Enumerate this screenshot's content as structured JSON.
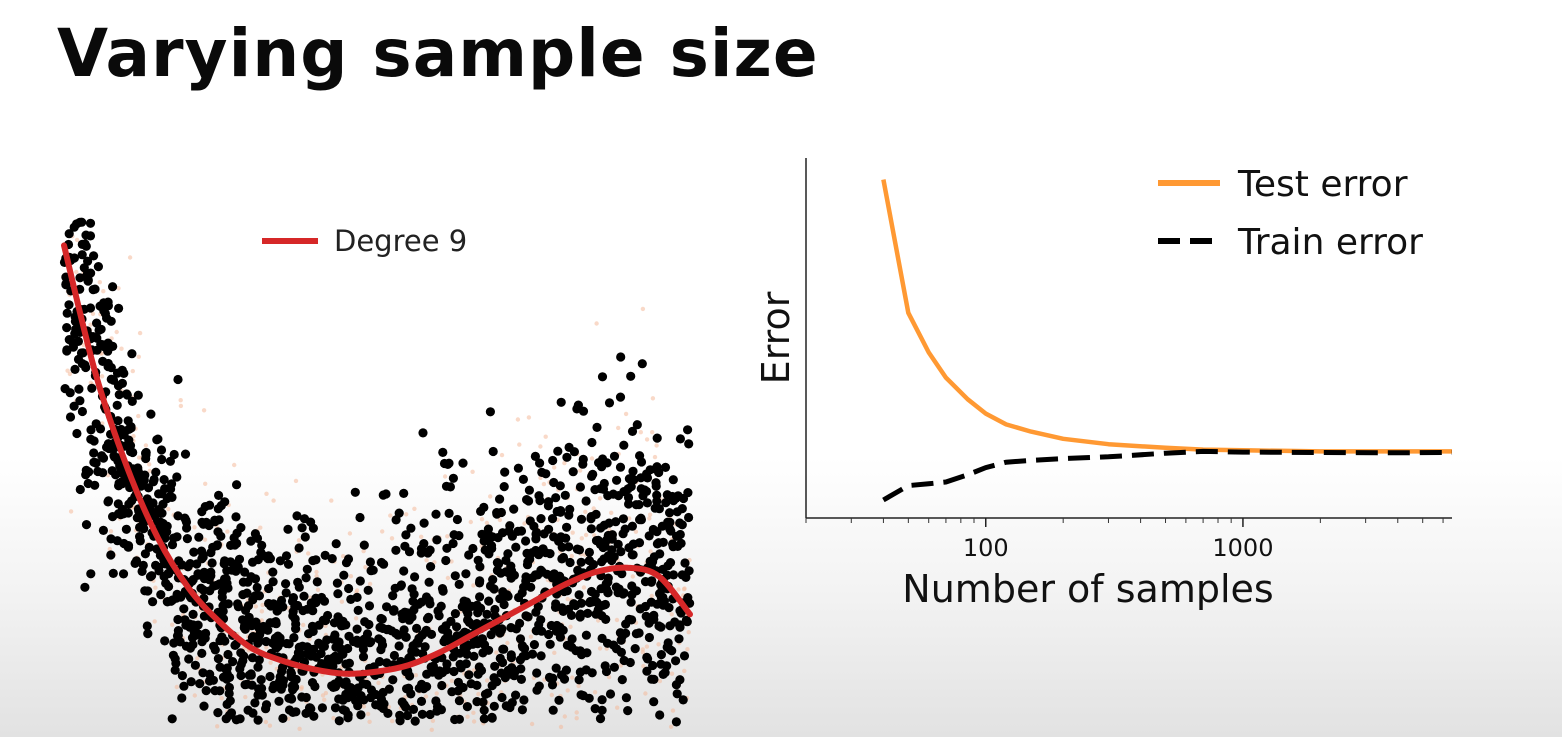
{
  "slide": {
    "title": "Varying sample size"
  },
  "chart_data": [
    {
      "type": "scatter",
      "title": "",
      "xlabel": "",
      "ylabel": "",
      "axes_visible": false,
      "legend": {
        "placement": "top-center",
        "entries": [
          {
            "name": "Degree 9",
            "color": "#d62728",
            "style": "solid"
          }
        ]
      },
      "colors": {
        "points": "#000000",
        "faint_points": "#f4b99a",
        "fit_line": "#d62728"
      },
      "xlim": [
        0,
        1
      ],
      "ylim": [
        0,
        1.25
      ],
      "point_count_approx": 1800,
      "fit_curve": {
        "name": "Degree 9",
        "x": [
          0.0,
          0.05,
          0.1,
          0.15,
          0.2,
          0.25,
          0.3,
          0.35,
          0.4,
          0.45,
          0.5,
          0.55,
          0.6,
          0.65,
          0.7,
          0.75,
          0.8,
          0.85,
          0.9,
          0.95,
          1.0
        ],
        "y": [
          1.19,
          0.89,
          0.67,
          0.5,
          0.38,
          0.3,
          0.24,
          0.21,
          0.19,
          0.18,
          0.185,
          0.2,
          0.23,
          0.27,
          0.31,
          0.35,
          0.39,
          0.42,
          0.43,
          0.41,
          0.32
        ]
      }
    },
    {
      "type": "line",
      "title": "",
      "xlabel": "Number of samples",
      "ylabel": "Error",
      "xscale": "log",
      "xlim": [
        20,
        6500
      ],
      "ylim": [
        0,
        1
      ],
      "x_ticks": [
        {
          "value": 100,
          "label": "100"
        },
        {
          "value": 1000,
          "label": "1000"
        }
      ],
      "y_ticks": [],
      "grid": false,
      "legend": {
        "placement": "top-right"
      },
      "series": [
        {
          "name": "Test error",
          "color": "#ff9933",
          "style": "solid",
          "x": [
            40,
            50,
            60,
            70,
            85,
            100,
            120,
            150,
            200,
            300,
            500,
            700,
            1000,
            2000,
            4000,
            6500
          ],
          "y": [
            0.94,
            0.57,
            0.46,
            0.39,
            0.33,
            0.29,
            0.26,
            0.24,
            0.22,
            0.205,
            0.195,
            0.19,
            0.188,
            0.185,
            0.185,
            0.185
          ]
        },
        {
          "name": "Train error",
          "color": "#000000",
          "style": "dashed",
          "x": [
            40,
            50,
            60,
            70,
            85,
            100,
            120,
            150,
            200,
            300,
            500,
            700,
            1000,
            2000,
            4000,
            6500
          ],
          "y": [
            0.05,
            0.09,
            0.095,
            0.1,
            0.12,
            0.14,
            0.155,
            0.16,
            0.165,
            0.17,
            0.18,
            0.185,
            0.183,
            0.182,
            0.181,
            0.182
          ]
        }
      ]
    }
  ]
}
